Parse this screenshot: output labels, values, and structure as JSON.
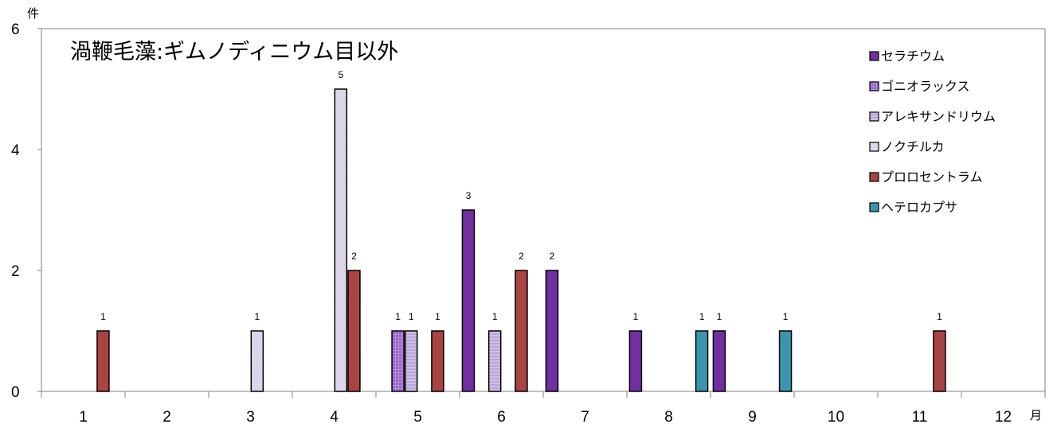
{
  "chart_data": {
    "type": "bar",
    "title": "渦鞭毛藻:ギムノディニウム目以外",
    "ylabel": "件",
    "xlabel": "月",
    "categories": [
      "1",
      "2",
      "3",
      "4",
      "5",
      "6",
      "7",
      "8",
      "9",
      "10",
      "11",
      "12"
    ],
    "ylim": [
      0,
      6
    ],
    "yticks": [
      "0",
      "2",
      "4",
      "6"
    ],
    "grid": false,
    "legend_position": "top-right",
    "series": [
      {
        "name": "セラチウム",
        "color": "#7030a0",
        "pattern": "solid",
        "values": [
          0,
          0,
          0,
          0,
          0,
          3,
          2,
          1,
          1,
          0,
          0,
          0
        ]
      },
      {
        "name": "ゴニオラックス",
        "color": "#9966cc",
        "pattern": "grid",
        "values": [
          0,
          0,
          0,
          0,
          1,
          0,
          0,
          0,
          0,
          0,
          0,
          0
        ]
      },
      {
        "name": "アレキサンドリウム",
        "color": "#b9a6d9",
        "pattern": "hatch",
        "values": [
          0,
          0,
          0,
          0,
          1,
          1,
          0,
          0,
          0,
          0,
          0,
          0
        ]
      },
      {
        "name": "ノクチルカ",
        "color": "#dcd6ea",
        "pattern": "light",
        "values": [
          0,
          0,
          1,
          5,
          0,
          0,
          0,
          0,
          0,
          0,
          0,
          0
        ]
      },
      {
        "name": "プロロセントラム",
        "color": "#a94442",
        "pattern": "solid",
        "values": [
          1,
          0,
          0,
          2,
          1,
          2,
          0,
          0,
          0,
          0,
          1,
          0
        ]
      },
      {
        "name": "ヘテロカプサ",
        "color": "#3a96ac",
        "pattern": "solid",
        "values": [
          0,
          0,
          0,
          0,
          0,
          0,
          0,
          1,
          1,
          0,
          0,
          0
        ]
      }
    ],
    "data_labels": {
      "セラチウム": [
        "",
        "",
        "",
        "",
        "",
        "3",
        "2",
        "1",
        "1",
        "",
        "",
        ""
      ],
      "ゴニオラックス": [
        "",
        "",
        "",
        "",
        "1",
        "",
        "",
        "",
        "",
        "",
        "",
        ""
      ],
      "アレキサンドリウム": [
        "",
        "",
        "",
        "",
        "1",
        "1",
        "",
        "",
        "",
        "",
        "",
        ""
      ],
      "ノクチルカ": [
        "",
        "",
        "1",
        "5",
        "",
        "",
        "",
        "",
        "",
        "",
        "",
        ""
      ],
      "プロロセントラム": [
        "1",
        "",
        "",
        "2",
        "1",
        "2",
        "",
        "",
        "",
        "",
        "1",
        ""
      ],
      "ヘテロカプサ": [
        "",
        "",
        "",
        "",
        "",
        "",
        "",
        "1",
        "1",
        "",
        "",
        ""
      ]
    }
  }
}
